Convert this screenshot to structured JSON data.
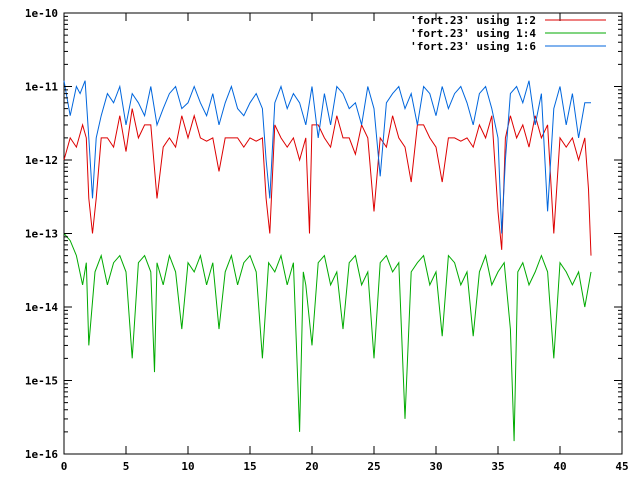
{
  "chart_data": {
    "type": "line",
    "title": "",
    "xlabel": "",
    "ylabel": "",
    "xlim": [
      0,
      45
    ],
    "ylim": [
      1e-16,
      1e-10
    ],
    "y_scale": "log",
    "grid": false,
    "legend_position": "top-right",
    "x_ticks": [
      {
        "value": 0,
        "label": "0"
      },
      {
        "value": 5,
        "label": "5"
      },
      {
        "value": 10,
        "label": "10"
      },
      {
        "value": 15,
        "label": "15"
      },
      {
        "value": 20,
        "label": "20"
      },
      {
        "value": 25,
        "label": "25"
      },
      {
        "value": 30,
        "label": "30"
      },
      {
        "value": 35,
        "label": "35"
      },
      {
        "value": 40,
        "label": "40"
      },
      {
        "value": 45,
        "label": "45"
      }
    ],
    "y_ticks": [
      {
        "value": 1e-16,
        "label": "1e-16"
      },
      {
        "value": 1e-15,
        "label": "1e-15"
      },
      {
        "value": 1e-14,
        "label": "1e-14"
      },
      {
        "value": 1e-13,
        "label": "1e-13"
      },
      {
        "value": 1e-12,
        "label": "1e-12"
      },
      {
        "value": 1e-11,
        "label": "1e-11"
      },
      {
        "value": 1e-10,
        "label": "1e-10"
      }
    ],
    "series": [
      {
        "name": "'fort.23' using 1:2",
        "color": "#dd0000",
        "x": [
          0.0,
          0.5,
          1.0,
          1.5,
          1.8,
          2.0,
          2.3,
          2.6,
          3.0,
          3.5,
          4.0,
          4.5,
          5.0,
          5.5,
          6.0,
          6.5,
          7.0,
          7.5,
          8.0,
          8.5,
          9.0,
          9.5,
          10.0,
          10.5,
          11.0,
          11.5,
          12.0,
          12.5,
          13.0,
          13.5,
          14.0,
          14.5,
          15.0,
          15.5,
          16.0,
          16.3,
          16.6,
          17.0,
          17.5,
          18.0,
          18.5,
          19.0,
          19.5,
          19.8,
          20.0,
          20.5,
          21.0,
          21.5,
          22.0,
          22.5,
          23.0,
          23.5,
          24.0,
          24.5,
          25.0,
          25.5,
          26.0,
          26.5,
          27.0,
          27.5,
          28.0,
          28.5,
          29.0,
          29.5,
          30.0,
          30.5,
          31.0,
          31.5,
          32.0,
          32.5,
          33.0,
          33.5,
          34.0,
          34.5,
          35.0,
          35.3,
          35.6,
          36.0,
          36.5,
          37.0,
          37.5,
          38.0,
          38.5,
          39.0,
          39.5,
          40.0,
          40.5,
          41.0,
          41.5,
          42.0,
          42.3,
          42.5
        ],
        "y": [
          1e-12,
          2e-12,
          1.5e-12,
          3e-12,
          2e-12,
          3e-13,
          1e-13,
          3e-13,
          2e-12,
          2e-12,
          1.5e-12,
          4e-12,
          1.3e-12,
          5e-12,
          2e-12,
          3e-12,
          3e-12,
          3e-13,
          1.5e-12,
          2e-12,
          1.5e-12,
          4e-12,
          2e-12,
          4e-12,
          2e-12,
          1.8e-12,
          2e-12,
          7e-13,
          2e-12,
          2e-12,
          2e-12,
          1.5e-12,
          2e-12,
          1.8e-12,
          2e-12,
          3e-13,
          1e-13,
          3e-12,
          2e-12,
          1.5e-12,
          2e-12,
          1e-12,
          2e-12,
          1e-13,
          3e-12,
          3e-12,
          2e-12,
          1.5e-12,
          4e-12,
          2e-12,
          2e-12,
          1.2e-12,
          3e-12,
          2e-12,
          2e-13,
          2e-12,
          1.5e-12,
          4e-12,
          2e-12,
          1.5e-12,
          5e-13,
          3e-12,
          3e-12,
          2e-12,
          1.5e-12,
          5e-13,
          2e-12,
          2e-12,
          1.8e-12,
          2e-12,
          1.5e-12,
          3e-12,
          2e-12,
          4e-12,
          2e-13,
          6e-14,
          2e-12,
          4e-12,
          2e-12,
          3e-12,
          1.5e-12,
          4e-12,
          2e-12,
          3e-12,
          1e-13,
          2e-12,
          1.5e-12,
          2e-12,
          1e-12,
          2e-12,
          4e-13,
          5e-14
        ]
      },
      {
        "name": "'fort.23' using 1:4",
        "color": "#00aa00",
        "x": [
          0.0,
          0.5,
          1.0,
          1.5,
          1.8,
          2.0,
          2.5,
          3.0,
          3.5,
          4.0,
          4.5,
          5.0,
          5.5,
          6.0,
          6.5,
          7.0,
          7.3,
          7.5,
          8.0,
          8.5,
          9.0,
          9.5,
          10.0,
          10.5,
          11.0,
          11.5,
          12.0,
          12.5,
          13.0,
          13.5,
          14.0,
          14.5,
          15.0,
          15.5,
          16.0,
          16.5,
          17.0,
          17.5,
          18.0,
          18.5,
          19.0,
          19.3,
          19.5,
          20.0,
          20.5,
          21.0,
          21.5,
          22.0,
          22.5,
          23.0,
          23.5,
          24.0,
          24.5,
          25.0,
          25.5,
          26.0,
          26.5,
          27.0,
          27.5,
          28.0,
          28.5,
          29.0,
          29.5,
          30.0,
          30.5,
          31.0,
          31.5,
          32.0,
          32.5,
          33.0,
          33.5,
          34.0,
          34.5,
          35.0,
          35.5,
          36.0,
          36.3,
          36.6,
          37.0,
          37.5,
          38.0,
          38.5,
          39.0,
          39.5,
          40.0,
          40.5,
          41.0,
          41.5,
          42.0,
          42.5
        ],
        "y": [
          1e-13,
          8e-14,
          5e-14,
          2e-14,
          4e-14,
          3e-15,
          3e-14,
          5e-14,
          2e-14,
          4e-14,
          5e-14,
          3e-14,
          2e-15,
          4e-14,
          5e-14,
          3e-14,
          1.3e-15,
          4e-14,
          2e-14,
          5e-14,
          3e-14,
          5e-15,
          4e-14,
          3e-14,
          5e-14,
          2e-14,
          4e-14,
          5e-15,
          3e-14,
          5e-14,
          2e-14,
          4e-14,
          5e-14,
          3e-14,
          2e-15,
          4e-14,
          3e-14,
          5e-14,
          2e-14,
          4e-14,
          2e-16,
          3e-14,
          2e-14,
          3e-15,
          4e-14,
          5e-14,
          2e-14,
          3e-14,
          5e-15,
          4e-14,
          5e-14,
          2e-14,
          3e-14,
          2e-15,
          4e-14,
          5e-14,
          3e-14,
          4e-14,
          3e-16,
          3e-14,
          4e-14,
          5e-14,
          2e-14,
          3e-14,
          4e-15,
          5e-14,
          4e-14,
          2e-14,
          3e-14,
          4e-15,
          3e-14,
          5e-14,
          2e-14,
          3e-14,
          4e-14,
          5e-15,
          1.5e-16,
          3e-14,
          4e-14,
          2e-14,
          3e-14,
          5e-14,
          3e-14,
          2e-15,
          4e-14,
          3e-14,
          2e-14,
          3e-14,
          1e-14,
          3e-14
        ]
      },
      {
        "name": "'fort.23' using 1:6",
        "color": "#0066dd",
        "x": [
          0.0,
          0.5,
          1.0,
          1.3,
          1.7,
          2.0,
          2.3,
          2.6,
          3.0,
          3.5,
          4.0,
          4.5,
          5.0,
          5.5,
          6.0,
          6.5,
          7.0,
          7.5,
          8.0,
          8.5,
          9.0,
          9.5,
          10.0,
          10.5,
          11.0,
          11.5,
          12.0,
          12.5,
          13.0,
          13.5,
          14.0,
          14.5,
          15.0,
          15.5,
          16.0,
          16.3,
          16.6,
          17.0,
          17.5,
          18.0,
          18.5,
          19.0,
          19.5,
          20.0,
          20.5,
          21.0,
          21.5,
          22.0,
          22.5,
          23.0,
          23.5,
          24.0,
          24.5,
          25.0,
          25.5,
          26.0,
          26.5,
          27.0,
          27.5,
          28.0,
          28.5,
          29.0,
          29.5,
          30.0,
          30.5,
          31.0,
          31.5,
          32.0,
          32.5,
          33.0,
          33.5,
          34.0,
          34.5,
          35.0,
          35.3,
          35.6,
          36.0,
          36.5,
          37.0,
          37.5,
          38.0,
          38.5,
          39.0,
          39.5,
          40.0,
          40.5,
          41.0,
          41.5,
          42.0,
          42.5
        ],
        "y": [
          1.2e-11,
          4e-12,
          1e-11,
          8e-12,
          1.2e-11,
          2e-12,
          3e-13,
          2e-12,
          4e-12,
          8e-12,
          6e-12,
          1e-11,
          3e-12,
          8e-12,
          6e-12,
          4e-12,
          1e-11,
          3e-12,
          5e-12,
          8e-12,
          1e-11,
          5e-12,
          6e-12,
          1e-11,
          6e-12,
          4e-12,
          8e-12,
          3e-12,
          6e-12,
          1e-11,
          5e-12,
          4e-12,
          6e-12,
          8e-12,
          5e-12,
          1e-12,
          3e-13,
          6e-12,
          1e-11,
          5e-12,
          8e-12,
          6e-12,
          3e-12,
          1e-11,
          2e-12,
          8e-12,
          3e-12,
          1e-11,
          8e-12,
          5e-12,
          6e-12,
          3e-12,
          1e-11,
          5e-12,
          6e-13,
          6e-12,
          8e-12,
          1e-11,
          5e-12,
          8e-12,
          3e-12,
          1e-11,
          8e-12,
          4e-12,
          1e-11,
          5e-12,
          8e-12,
          1e-11,
          6e-12,
          3e-12,
          8e-12,
          1e-11,
          5e-12,
          2e-12,
          1e-13,
          1e-12,
          8e-12,
          1e-11,
          6e-12,
          1.2e-11,
          3e-12,
          8e-12,
          2e-13,
          5e-12,
          1e-11,
          3e-12,
          8e-12,
          2e-12,
          6e-12,
          6e-12
        ]
      }
    ]
  }
}
